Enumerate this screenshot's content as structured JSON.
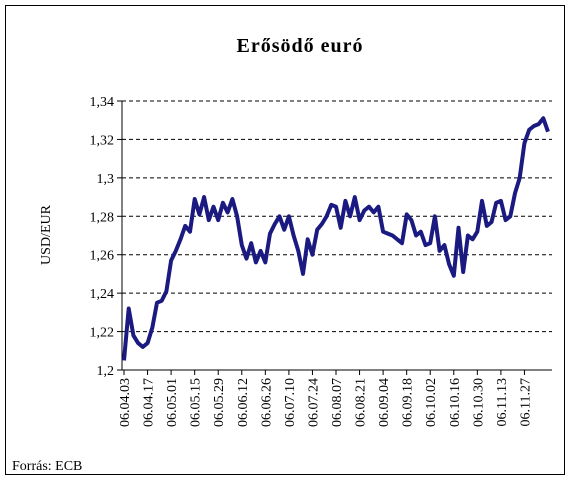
{
  "chart_data": {
    "type": "line",
    "title": "Erősödő euró",
    "ylabel": "USD/EUR",
    "source": "Forrás: ECB",
    "categories": [
      "06.04.03",
      null,
      null,
      null,
      null,
      "06.04.17",
      null,
      null,
      null,
      null,
      "06.05.01",
      null,
      null,
      null,
      null,
      "06.05.15",
      null,
      null,
      null,
      null,
      "06.05.29",
      null,
      null,
      null,
      null,
      "06.06.12",
      null,
      null,
      null,
      null,
      "06.06.26",
      null,
      null,
      null,
      null,
      "06.07.10",
      null,
      null,
      null,
      null,
      "06.07.24",
      null,
      null,
      null,
      null,
      "06.08.07",
      null,
      null,
      null,
      null,
      "06.08.21",
      null,
      null,
      null,
      null,
      "06.09.04",
      null,
      null,
      null,
      null,
      "06.09.18",
      null,
      null,
      null,
      null,
      "06.10.02",
      null,
      null,
      null,
      null,
      "06.10.16",
      null,
      null,
      null,
      null,
      "06.10.30",
      null,
      null,
      null,
      null,
      "06.11.13",
      null,
      null,
      null,
      null,
      "06.11.27",
      null,
      null,
      null,
      null,
      null
    ],
    "values": [
      1.205,
      1.232,
      1.218,
      1.214,
      1.212,
      1.214,
      1.222,
      1.235,
      1.236,
      1.241,
      1.257,
      1.262,
      1.268,
      1.275,
      1.272,
      1.289,
      1.281,
      1.29,
      1.278,
      1.285,
      1.278,
      1.287,
      1.282,
      1.289,
      1.28,
      1.265,
      1.258,
      1.266,
      1.256,
      1.262,
      1.256,
      1.271,
      1.276,
      1.28,
      1.273,
      1.28,
      1.27,
      1.262,
      1.25,
      1.268,
      1.26,
      1.273,
      1.276,
      1.28,
      1.286,
      1.285,
      1.274,
      1.288,
      1.28,
      1.29,
      1.278,
      1.283,
      1.285,
      1.282,
      1.285,
      1.272,
      1.271,
      1.27,
      1.268,
      1.266,
      1.281,
      1.278,
      1.27,
      1.272,
      1.265,
      1.266,
      1.28,
      1.262,
      1.265,
      1.255,
      1.249,
      1.274,
      1.251,
      1.27,
      1.268,
      1.272,
      1.288,
      1.275,
      1.277,
      1.287,
      1.288,
      1.278,
      1.28,
      1.292,
      1.3,
      1.318,
      1.325,
      1.327,
      1.328,
      1.331,
      1.324
    ],
    "color": "#1a1a80",
    "ylim": [
      1.2,
      1.34
    ],
    "yticks": [
      {
        "value": 1.2,
        "label": "1,2"
      },
      {
        "value": 1.22,
        "label": "1,22"
      },
      {
        "value": 1.24,
        "label": "1,24"
      },
      {
        "value": 1.26,
        "label": "1,26"
      },
      {
        "value": 1.28,
        "label": "1,28"
      },
      {
        "value": 1.3,
        "label": "1,3"
      },
      {
        "value": 1.32,
        "label": "1,32"
      },
      {
        "value": 1.34,
        "label": "1,34"
      }
    ],
    "grid": true
  }
}
